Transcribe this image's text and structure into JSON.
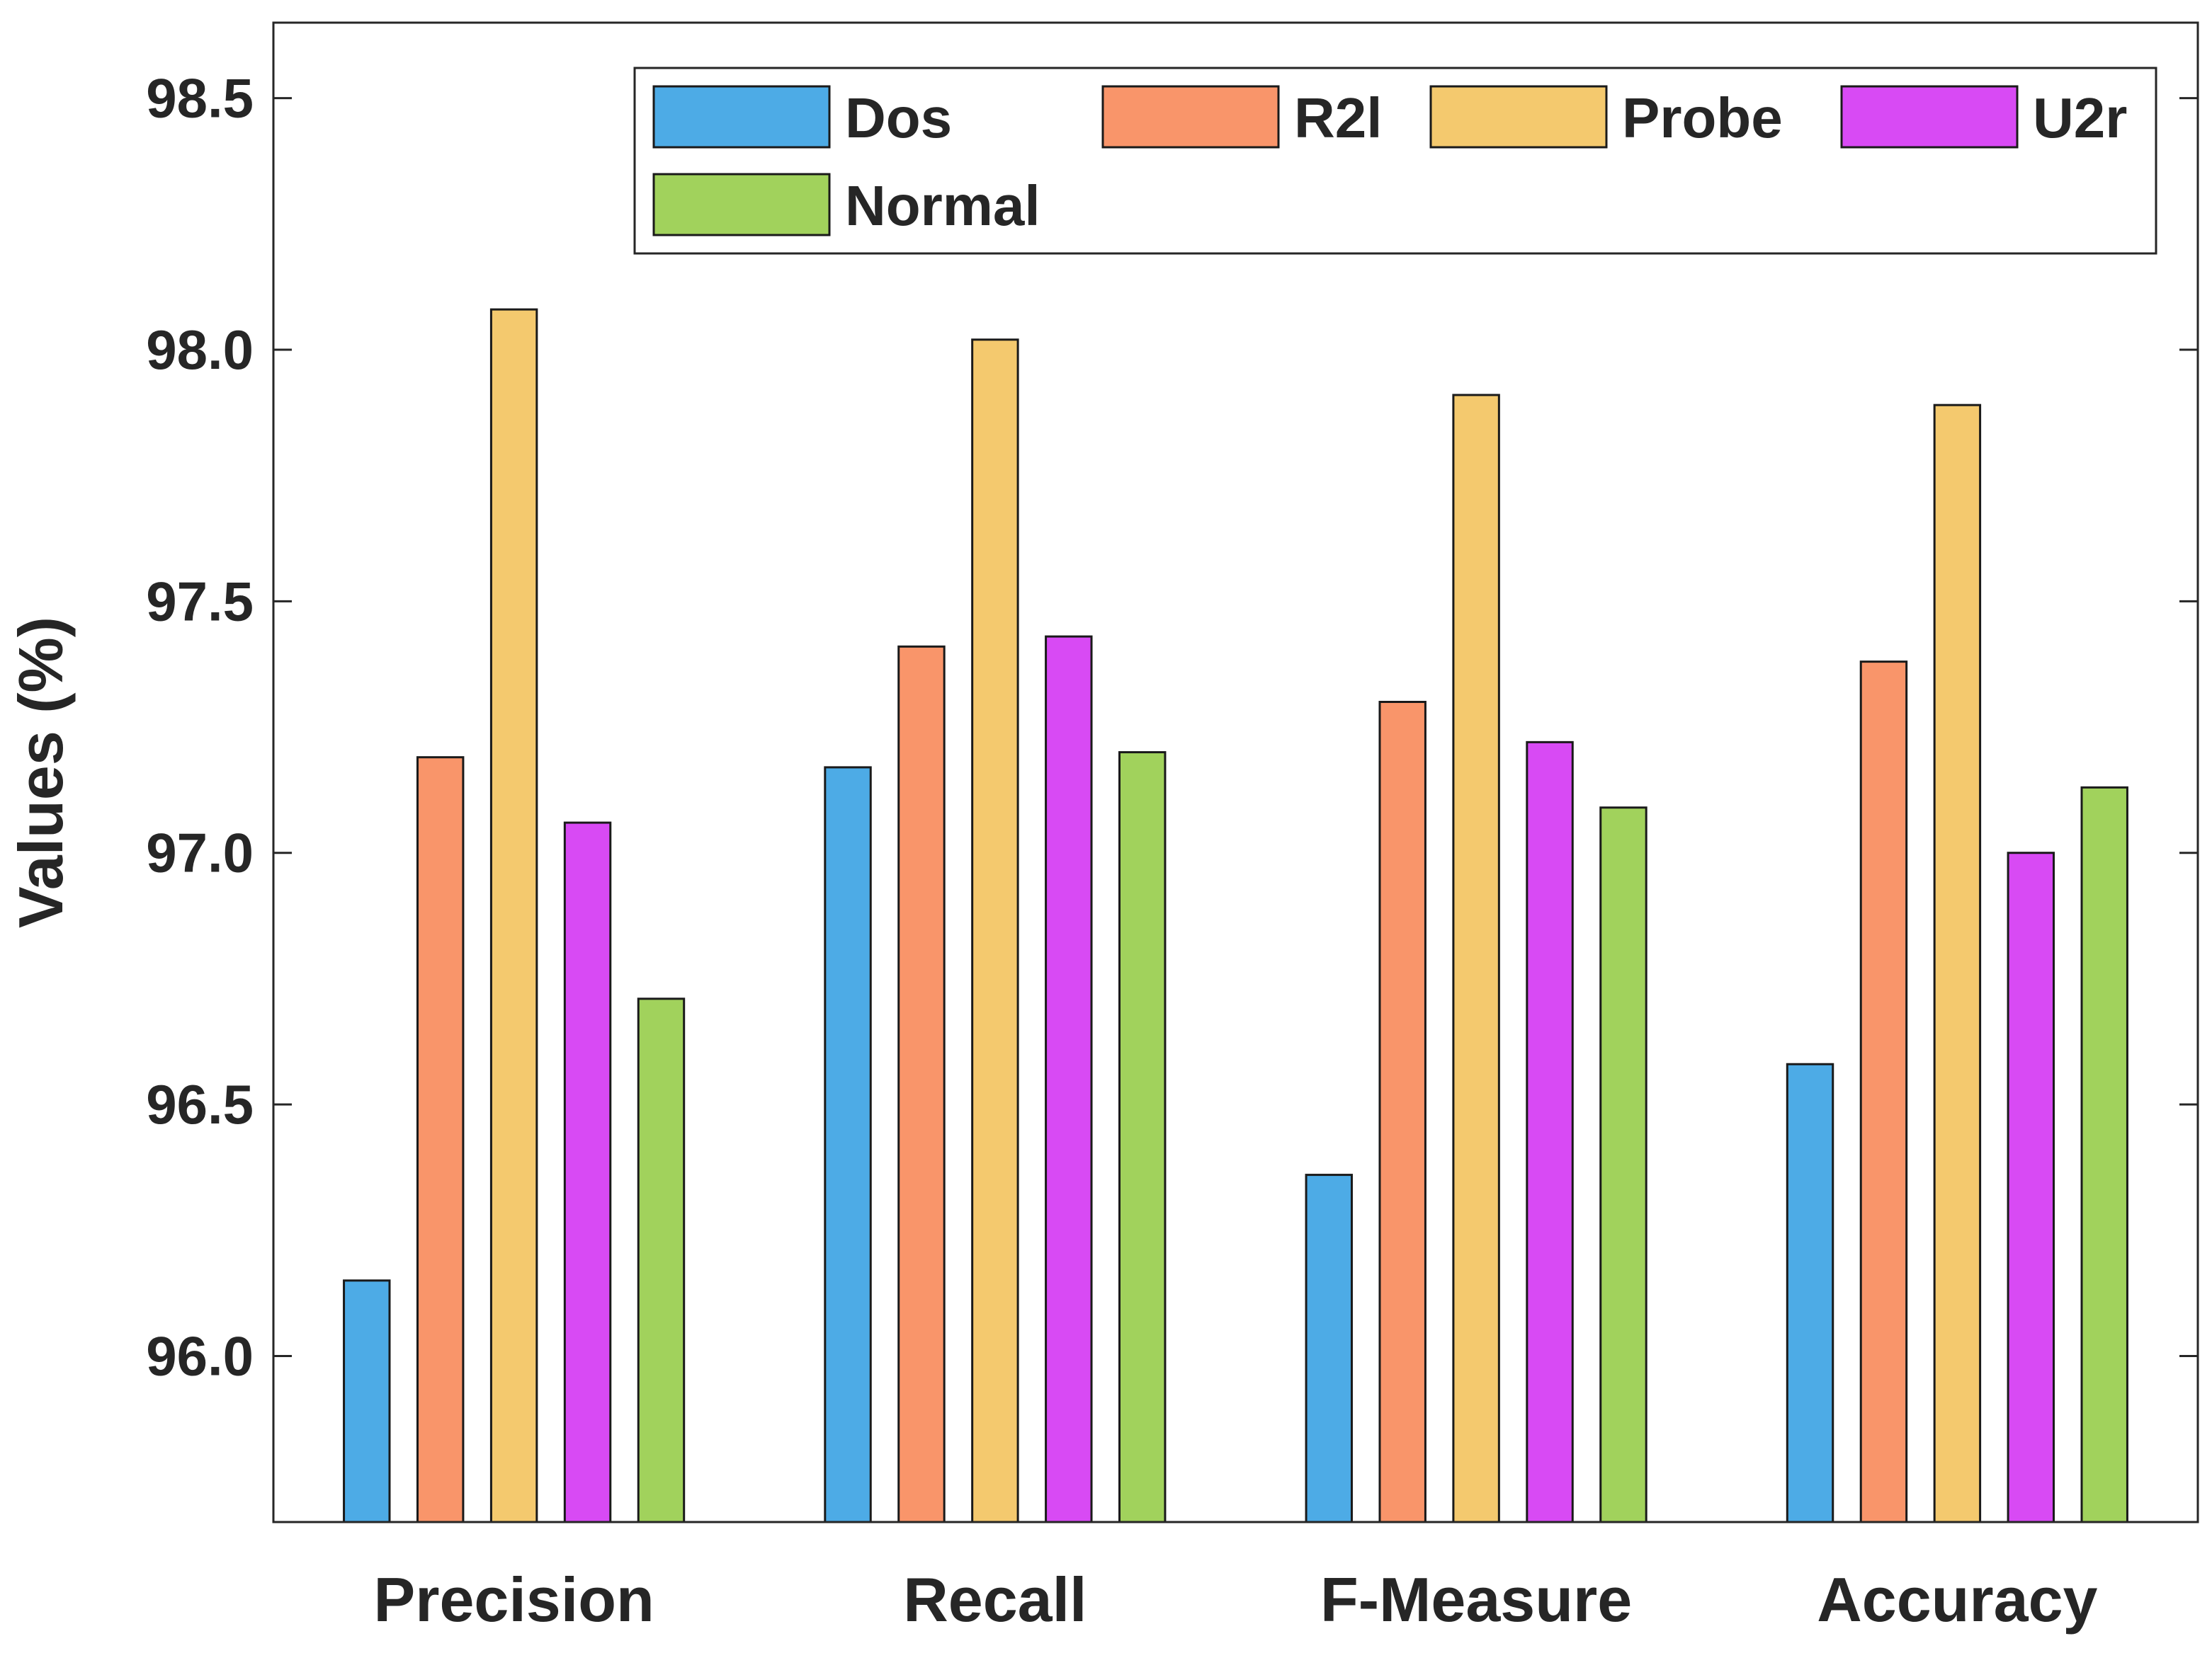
{
  "chart_data": {
    "type": "bar",
    "title": "",
    "xlabel": "",
    "ylabel": "Values (%)",
    "categories": [
      "Precision",
      "Recall",
      "F-Measure",
      "Accuracy"
    ],
    "ylim": [
      95.67,
      98.65
    ],
    "yticks": [
      96.0,
      96.5,
      97.0,
      97.5,
      98.0,
      98.5
    ],
    "ytick_labels": [
      "96.0",
      "96.5",
      "97.0",
      "97.5",
      "98.0",
      "98.5"
    ],
    "grid": false,
    "legend_position": "top-right",
    "series": [
      {
        "name": "Dos",
        "color": "#4DABE6",
        "values": [
          96.15,
          97.17,
          96.36,
          96.58
        ]
      },
      {
        "name": "R2l",
        "color": "#F9956A",
        "values": [
          97.19,
          97.41,
          97.3,
          97.38
        ]
      },
      {
        "name": "Probe",
        "color": "#F4C96E",
        "values": [
          98.08,
          98.02,
          97.91,
          97.89
        ]
      },
      {
        "name": "U2r",
        "color": "#D84AF4",
        "values": [
          97.06,
          97.43,
          97.22,
          97.0
        ]
      },
      {
        "name": "Normal",
        "color": "#A1D25C",
        "values": [
          96.71,
          97.2,
          97.09,
          97.13
        ]
      }
    ]
  }
}
